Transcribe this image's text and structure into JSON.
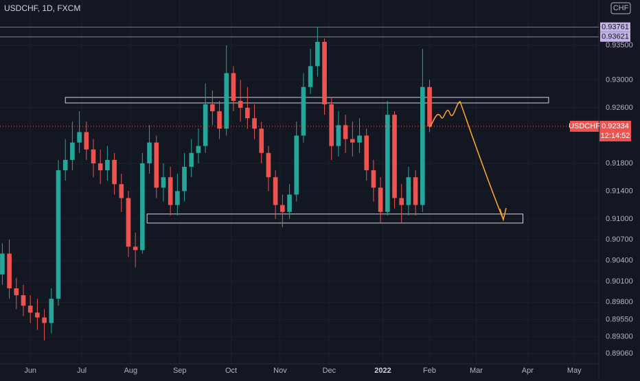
{
  "chart_data": {
    "type": "candlestick",
    "title": "USDCHF, 1D, FXCM",
    "currency": "CHF",
    "symbol": "USDCHF",
    "up_color": "#26a69a",
    "down_color": "#ef5350",
    "x": [
      1,
      4,
      7,
      10,
      13,
      16,
      19,
      22,
      25,
      28,
      31,
      34,
      37,
      40,
      43,
      46,
      49,
      52,
      55,
      58,
      61,
      64,
      67,
      70,
      73,
      76,
      79,
      82,
      85,
      88,
      91,
      94,
      97,
      100,
      103,
      106,
      109,
      112,
      115,
      118,
      121,
      124,
      127,
      130,
      133,
      136,
      139,
      142,
      145,
      148,
      151,
      154,
      157,
      160,
      163,
      166,
      169,
      172,
      175,
      178,
      181,
      184
    ],
    "open": [
      0.902,
      0.905,
      0.9,
      0.899,
      0.8975,
      0.8965,
      0.8958,
      0.895,
      0.8985,
      0.917,
      0.9185,
      0.921,
      0.9225,
      0.92,
      0.918,
      0.917,
      0.9185,
      0.915,
      0.913,
      0.906,
      0.9055,
      0.918,
      0.921,
      0.9145,
      0.916,
      0.912,
      0.914,
      0.9175,
      0.9195,
      0.9205,
      0.9265,
      0.9255,
      0.923,
      0.931,
      0.927,
      0.926,
      0.9245,
      0.923,
      0.9195,
      0.916,
      0.912,
      0.911,
      0.9135,
      0.922,
      0.929,
      0.932,
      0.9355,
      0.9265,
      0.9205,
      0.9235,
      0.9215,
      0.921,
      0.922,
      0.917,
      0.9145,
      0.911,
      0.925,
      0.913,
      0.912,
      0.916,
      0.912,
      0.929
    ],
    "high": [
      0.9065,
      0.907,
      0.9015,
      0.9005,
      0.899,
      0.8985,
      0.897,
      0.9,
      0.9185,
      0.9215,
      0.924,
      0.9255,
      0.924,
      0.9215,
      0.92,
      0.9205,
      0.9195,
      0.9165,
      0.914,
      0.908,
      0.9195,
      0.9235,
      0.922,
      0.918,
      0.9175,
      0.9165,
      0.9195,
      0.9215,
      0.923,
      0.9295,
      0.9285,
      0.927,
      0.935,
      0.932,
      0.93,
      0.929,
      0.9265,
      0.924,
      0.9205,
      0.917,
      0.9135,
      0.915,
      0.924,
      0.931,
      0.9345,
      0.9376,
      0.936,
      0.9275,
      0.9255,
      0.925,
      0.924,
      0.9245,
      0.923,
      0.9185,
      0.916,
      0.927,
      0.9255,
      0.915,
      0.9175,
      0.917,
      0.9345,
      0.93
    ],
    "low": [
      0.9005,
      0.8985,
      0.897,
      0.896,
      0.895,
      0.894,
      0.8925,
      0.8935,
      0.8975,
      0.9155,
      0.917,
      0.9195,
      0.9185,
      0.916,
      0.915,
      0.9155,
      0.9135,
      0.911,
      0.9045,
      0.903,
      0.905,
      0.9165,
      0.913,
      0.9125,
      0.9105,
      0.9105,
      0.9125,
      0.916,
      0.918,
      0.9195,
      0.9235,
      0.9215,
      0.922,
      0.9255,
      0.924,
      0.923,
      0.9215,
      0.918,
      0.914,
      0.91,
      0.9088,
      0.91,
      0.9125,
      0.921,
      0.928,
      0.9305,
      0.925,
      0.9185,
      0.919,
      0.9195,
      0.919,
      0.9195,
      0.9155,
      0.9125,
      0.9095,
      0.9105,
      0.9115,
      0.9095,
      0.9105,
      0.9105,
      0.911,
      0.9225
    ],
    "close": [
      0.905,
      0.9,
      0.899,
      0.8975,
      0.8965,
      0.8958,
      0.895,
      0.8985,
      0.917,
      0.9185,
      0.921,
      0.9225,
      0.92,
      0.918,
      0.917,
      0.9185,
      0.915,
      0.913,
      0.906,
      0.9055,
      0.918,
      0.921,
      0.9145,
      0.916,
      0.912,
      0.914,
      0.9175,
      0.9195,
      0.9205,
      0.9265,
      0.9255,
      0.923,
      0.931,
      0.927,
      0.926,
      0.9245,
      0.923,
      0.9195,
      0.916,
      0.912,
      0.911,
      0.9135,
      0.922,
      0.929,
      0.932,
      0.9355,
      0.9265,
      0.9205,
      0.9235,
      0.9215,
      0.921,
      0.922,
      0.917,
      0.9145,
      0.911,
      0.925,
      0.913,
      0.912,
      0.916,
      0.912,
      0.929,
      0.9233
    ],
    "xlim": [
      0,
      256.5
    ],
    "xticks": [
      {
        "value": 13,
        "label": "Jun"
      },
      {
        "value": 35,
        "label": "Jul"
      },
      {
        "value": 56,
        "label": "Aug"
      },
      {
        "value": 77,
        "label": "Sep"
      },
      {
        "value": 99,
        "label": "Oct"
      },
      {
        "value": 120,
        "label": "Nov"
      },
      {
        "value": 141,
        "label": "Dec"
      },
      {
        "value": 164,
        "label": "2022"
      },
      {
        "value": 184,
        "label": "Feb"
      },
      {
        "value": 204,
        "label": "Mar"
      },
      {
        "value": 226,
        "label": "Apr"
      },
      {
        "value": 246,
        "label": "May"
      }
    ],
    "ylim": [
      0.88912,
      0.94153
    ],
    "yticks": [
      {
        "value": 0.935,
        "label": "0.93500"
      },
      {
        "value": 0.93,
        "label": "0.93000"
      },
      {
        "value": 0.926,
        "label": "0.92600"
      },
      {
        "value": 0.918,
        "label": "0.91800"
      },
      {
        "value": 0.914,
        "label": "0.91400"
      },
      {
        "value": 0.91,
        "label": "0.91000"
      },
      {
        "value": 0.907,
        "label": "0.90700"
      },
      {
        "value": 0.904,
        "label": "0.90400"
      },
      {
        "value": 0.901,
        "label": "0.90100"
      },
      {
        "value": 0.898,
        "label": "0.89800"
      },
      {
        "value": 0.8955,
        "label": "0.89550"
      },
      {
        "value": 0.893,
        "label": "0.89300"
      },
      {
        "value": 0.8906,
        "label": "0.89060"
      }
    ],
    "levels": [
      0.93761,
      0.93621
    ],
    "last_price": 0.92334,
    "countdown": "12:14:52",
    "zones": [
      {
        "x0": 28,
        "x1": 235,
        "top": 0.9275,
        "bottom": 0.9267
      },
      {
        "x0": 63,
        "x1": 224,
        "top": 0.9107,
        "bottom": 0.9094
      }
    ]
  }
}
